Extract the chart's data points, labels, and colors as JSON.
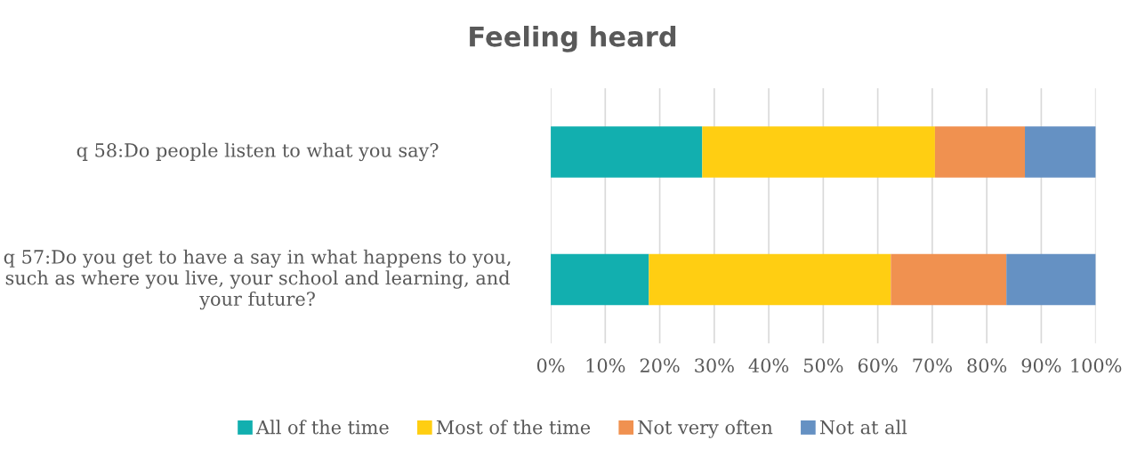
{
  "chart_data": {
    "type": "bar",
    "orientation": "horizontal",
    "stacked": true,
    "title": "Feeling heard",
    "categories": [
      "q 58:Do people listen to what you say?",
      "q 57:Do you get to have a say in what happens to you, such as where you live, your school and learning, and your future?"
    ],
    "series": [
      {
        "name": "All of the time",
        "color": "#12afaf",
        "values": [
          27.8,
          18.0
        ]
      },
      {
        "name": "Most of the time",
        "color": "#ffce12",
        "values": [
          42.7,
          44.4
        ]
      },
      {
        "name": "Not very often",
        "color": "#f09150",
        "values": [
          16.5,
          21.2
        ]
      },
      {
        "name": "Not at all",
        "color": "#6591c3",
        "values": [
          13.0,
          16.4
        ]
      }
    ],
    "xlim": [
      0,
      100
    ],
    "xticks": [
      {
        "value": 0,
        "label": "0%"
      },
      {
        "value": 10,
        "label": "10%"
      },
      {
        "value": 20,
        "label": "20%"
      },
      {
        "value": 30,
        "label": "30%"
      },
      {
        "value": 40,
        "label": "40%"
      },
      {
        "value": 50,
        "label": "50%"
      },
      {
        "value": 60,
        "label": "60%"
      },
      {
        "value": 70,
        "label": "70%"
      },
      {
        "value": 80,
        "label": "80%"
      },
      {
        "value": 90,
        "label": "90%"
      },
      {
        "value": 100,
        "label": "100%"
      }
    ],
    "grid": "x",
    "legend": "bottom"
  }
}
